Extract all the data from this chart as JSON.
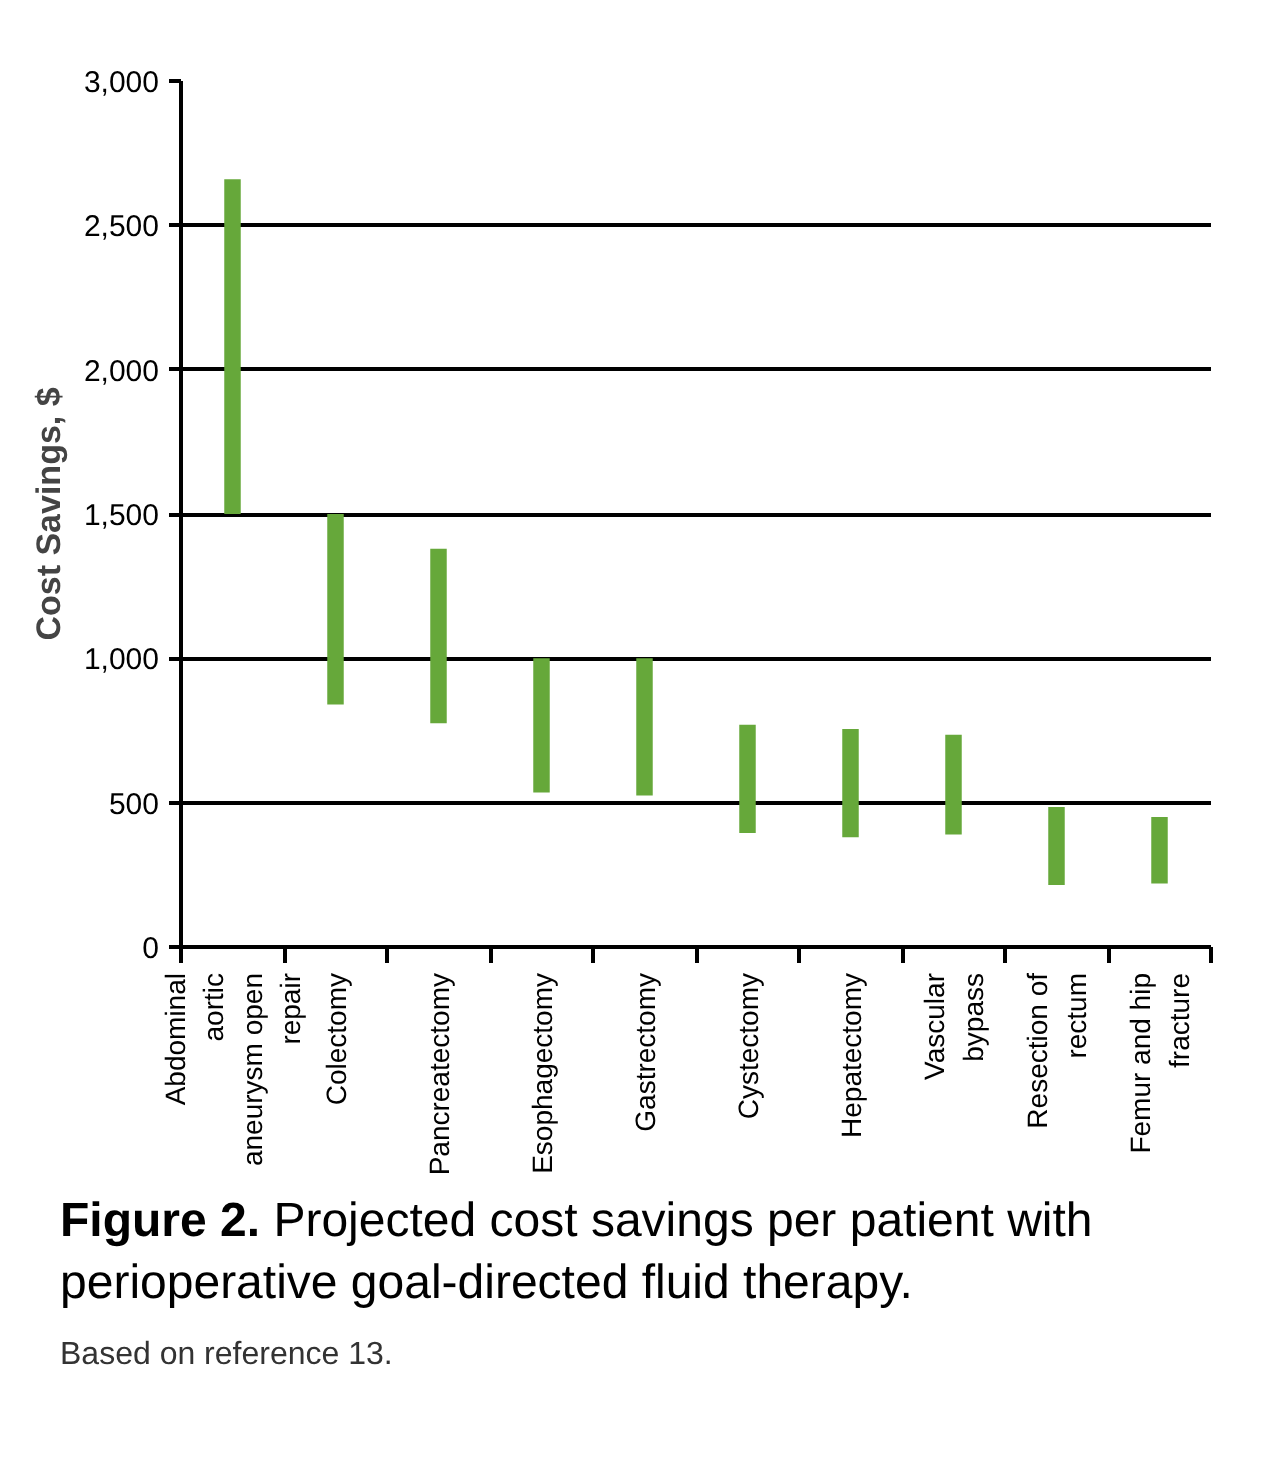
{
  "chart_data": {
    "type": "bar",
    "title": "Figure 2. Projected cost savings per patient with perioperative goal-directed fluid therapy.",
    "ylabel": "Cost Savings, $",
    "categories": [
      "Abdominal aortic aneurysm open repair",
      "Colectomy",
      "Pancreatectomy",
      "Esophagectomy",
      "Gastrectomy",
      "Cystectomy",
      "Hepatectomy",
      "Vascular bypass",
      "Resection of rectum",
      "Femur and hip fracture"
    ],
    "base": [
      1500,
      840,
      775,
      535,
      525,
      395,
      380,
      390,
      215,
      220
    ],
    "values": [
      1160,
      660,
      605,
      465,
      475,
      375,
      375,
      345,
      270,
      230
    ],
    "color": "#66a83a",
    "ylim": [
      0,
      3000
    ],
    "yticks": [
      0,
      500,
      {
        "value": 1000,
        "label": "1,000"
      },
      {
        "value": 1500,
        "label": "1,500"
      },
      {
        "value": 2000,
        "label": "2,000"
      },
      {
        "value": 2500,
        "label": "2,500"
      },
      {
        "value": 3000,
        "label": "3,000"
      }
    ],
    "grid": "y",
    "annotations": [
      "Based on reference 13."
    ]
  }
}
